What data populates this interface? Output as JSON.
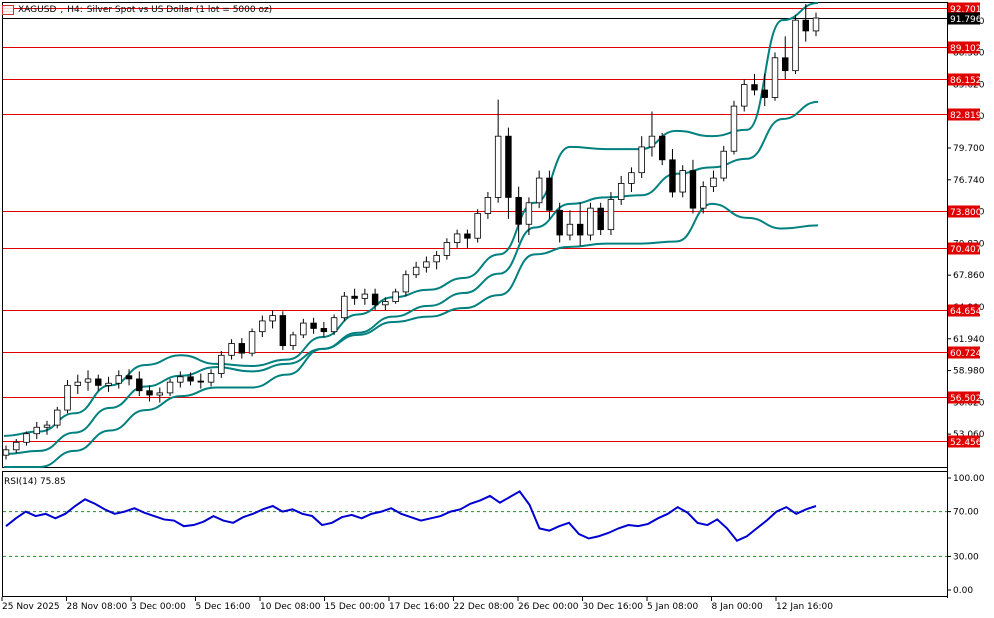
{
  "header": {
    "symbol": "XAGUSD",
    "timeframe": "H4:",
    "description": "Silver Spot vs US Dollar (1 lot = 5000 oz)"
  },
  "rsi_header": {
    "label": "RSI(14) 75.85"
  },
  "colors": {
    "candle": "#000000",
    "bollinger": "#00807f",
    "level_line": "#e00000",
    "level_tag": "#e00000",
    "rsi_line": "#0000d0",
    "current_price_tag": "#000000"
  },
  "chart_data": [
    {
      "type": "candlestick",
      "title": "XAGUSD, H4: Silver Spot vs US Dollar (1 lot = 5000 oz)",
      "ylim": [
        50.0,
        93.2
      ],
      "y_ticks": [
        "53.060",
        "56.020",
        "58.980",
        "61.940",
        "64.900",
        "67.860",
        "70.820",
        "73.780",
        "76.740",
        "79.700",
        "82.660",
        "85.620",
        "88.580",
        "91.540"
      ],
      "x_ticks": [
        "25 Nov 2025",
        "28 Nov 08:00",
        "3 Dec 00:00",
        "5 Dec 16:00",
        "10 Dec 08:00",
        "15 Dec 00:00",
        "17 Dec 16:00",
        "22 Dec 08:00",
        "26 Dec 00:00",
        "30 Dec 16:00",
        "5 Jan 08:00",
        "8 Jan 00:00",
        "12 Jan 16:00"
      ],
      "horizontal_levels": [
        "92.701",
        "89.102",
        "86.152",
        "82.819",
        "73.800",
        "70.407",
        "64.654",
        "60.724",
        "56.502",
        "52.456"
      ],
      "current_price": "91.796",
      "bollinger_bands": {
        "upper": [
          52.9,
          53.3,
          55.0,
          57.6,
          59.5,
          60.4,
          59.6,
          59.4,
          60.0,
          62.1,
          64.2,
          65.8,
          66.5,
          67.6,
          69.8,
          74.6,
          79.8,
          79.6,
          79.6,
          81.3,
          80.8,
          81.4,
          91.6,
          95.0
        ],
        "middle": [
          51.2,
          51.5,
          53.2,
          55.5,
          57.5,
          58.5,
          59.3,
          58.9,
          59.6,
          61.0,
          62.5,
          64.0,
          65.0,
          66.2,
          68.0,
          72.3,
          74.5,
          75.1,
          75.3,
          77.3,
          77.9,
          78.7,
          82.4,
          84.0
        ],
        "lower": [
          48.8,
          49.8,
          51.5,
          53.4,
          55.3,
          56.6,
          57.4,
          57.4,
          58.6,
          61.0,
          62.3,
          63.5,
          64.0,
          64.8,
          66.0,
          69.8,
          70.5,
          70.8,
          70.8,
          71.0,
          74.5,
          73.2,
          72.2,
          72.5
        ]
      },
      "candles": [
        {
          "o": 51.1,
          "h": 52.0,
          "l": 50.7,
          "c": 51.6
        },
        {
          "o": 51.6,
          "h": 52.6,
          "l": 51.3,
          "c": 52.3
        },
        {
          "o": 52.3,
          "h": 53.3,
          "l": 52.0,
          "c": 53.1
        },
        {
          "o": 53.1,
          "h": 54.2,
          "l": 52.6,
          "c": 53.7
        },
        {
          "o": 53.7,
          "h": 54.3,
          "l": 53.0,
          "c": 53.9
        },
        {
          "o": 53.9,
          "h": 55.6,
          "l": 53.6,
          "c": 55.3
        },
        {
          "o": 55.3,
          "h": 58.1,
          "l": 55.0,
          "c": 57.6
        },
        {
          "o": 57.6,
          "h": 58.6,
          "l": 56.8,
          "c": 57.9
        },
        {
          "o": 57.9,
          "h": 59.0,
          "l": 57.1,
          "c": 58.2
        },
        {
          "o": 58.2,
          "h": 58.6,
          "l": 57.1,
          "c": 57.6
        },
        {
          "o": 57.6,
          "h": 58.4,
          "l": 57.0,
          "c": 57.8
        },
        {
          "o": 57.8,
          "h": 59.0,
          "l": 57.3,
          "c": 58.5
        },
        {
          "o": 58.5,
          "h": 59.1,
          "l": 57.6,
          "c": 58.2
        },
        {
          "o": 58.2,
          "h": 58.9,
          "l": 56.6,
          "c": 57.1
        },
        {
          "o": 57.1,
          "h": 57.6,
          "l": 56.1,
          "c": 56.7
        },
        {
          "o": 56.7,
          "h": 57.4,
          "l": 56.0,
          "c": 56.9
        },
        {
          "o": 56.9,
          "h": 58.2,
          "l": 56.6,
          "c": 57.9
        },
        {
          "o": 57.9,
          "h": 58.9,
          "l": 57.4,
          "c": 58.4
        },
        {
          "o": 58.4,
          "h": 58.8,
          "l": 57.6,
          "c": 58.0
        },
        {
          "o": 58.0,
          "h": 58.7,
          "l": 57.3,
          "c": 57.9
        },
        {
          "o": 57.9,
          "h": 59.1,
          "l": 57.5,
          "c": 58.7
        },
        {
          "o": 58.7,
          "h": 60.8,
          "l": 58.3,
          "c": 60.4
        },
        {
          "o": 60.4,
          "h": 61.9,
          "l": 60.0,
          "c": 61.5
        },
        {
          "o": 61.5,
          "h": 62.0,
          "l": 60.1,
          "c": 60.6
        },
        {
          "o": 60.6,
          "h": 62.9,
          "l": 60.3,
          "c": 62.6
        },
        {
          "o": 62.6,
          "h": 64.1,
          "l": 62.1,
          "c": 63.6
        },
        {
          "o": 63.6,
          "h": 64.6,
          "l": 62.9,
          "c": 64.1
        },
        {
          "o": 64.1,
          "h": 64.5,
          "l": 60.9,
          "c": 61.3
        },
        {
          "o": 61.3,
          "h": 62.6,
          "l": 60.9,
          "c": 62.3
        },
        {
          "o": 62.3,
          "h": 63.8,
          "l": 62.0,
          "c": 63.4
        },
        {
          "o": 63.4,
          "h": 63.9,
          "l": 62.4,
          "c": 62.9
        },
        {
          "o": 62.9,
          "h": 63.5,
          "l": 62.1,
          "c": 62.6
        },
        {
          "o": 62.6,
          "h": 64.2,
          "l": 62.3,
          "c": 63.9
        },
        {
          "o": 63.9,
          "h": 66.3,
          "l": 63.6,
          "c": 65.9
        },
        {
          "o": 65.9,
          "h": 66.6,
          "l": 65.1,
          "c": 65.7
        },
        {
          "o": 65.7,
          "h": 66.6,
          "l": 65.1,
          "c": 66.1
        },
        {
          "o": 66.1,
          "h": 66.6,
          "l": 64.6,
          "c": 65.1
        },
        {
          "o": 65.1,
          "h": 65.8,
          "l": 64.6,
          "c": 65.4
        },
        {
          "o": 65.4,
          "h": 66.6,
          "l": 65.2,
          "c": 66.3
        },
        {
          "o": 66.3,
          "h": 68.3,
          "l": 65.9,
          "c": 67.9
        },
        {
          "o": 67.9,
          "h": 69.1,
          "l": 67.6,
          "c": 68.6
        },
        {
          "o": 68.6,
          "h": 69.6,
          "l": 68.1,
          "c": 69.1
        },
        {
          "o": 69.1,
          "h": 70.1,
          "l": 68.4,
          "c": 69.7
        },
        {
          "o": 69.7,
          "h": 71.3,
          "l": 69.3,
          "c": 70.9
        },
        {
          "o": 70.9,
          "h": 72.1,
          "l": 70.4,
          "c": 71.7
        },
        {
          "o": 71.7,
          "h": 72.1,
          "l": 70.4,
          "c": 71.3
        },
        {
          "o": 71.3,
          "h": 74.0,
          "l": 70.9,
          "c": 73.6
        },
        {
          "o": 73.6,
          "h": 75.6,
          "l": 73.1,
          "c": 75.1
        },
        {
          "o": 75.1,
          "h": 84.2,
          "l": 74.6,
          "c": 80.8
        },
        {
          "o": 80.8,
          "h": 81.6,
          "l": 73.1,
          "c": 75.1
        },
        {
          "o": 75.1,
          "h": 76.1,
          "l": 70.9,
          "c": 72.6
        },
        {
          "o": 72.6,
          "h": 75.1,
          "l": 71.6,
          "c": 74.6
        },
        {
          "o": 74.6,
          "h": 77.6,
          "l": 74.1,
          "c": 76.9
        },
        {
          "o": 76.9,
          "h": 77.6,
          "l": 73.1,
          "c": 73.9
        },
        {
          "o": 73.9,
          "h": 74.6,
          "l": 70.9,
          "c": 71.6
        },
        {
          "o": 71.6,
          "h": 73.9,
          "l": 71.1,
          "c": 72.6
        },
        {
          "o": 72.6,
          "h": 74.6,
          "l": 70.6,
          "c": 71.6
        },
        {
          "o": 71.6,
          "h": 74.6,
          "l": 71.1,
          "c": 74.1
        },
        {
          "o": 74.1,
          "h": 74.6,
          "l": 71.6,
          "c": 72.1
        },
        {
          "o": 72.1,
          "h": 75.6,
          "l": 71.6,
          "c": 74.9
        },
        {
          "o": 74.9,
          "h": 77.1,
          "l": 74.4,
          "c": 76.4
        },
        {
          "o": 76.4,
          "h": 77.9,
          "l": 75.6,
          "c": 77.4
        },
        {
          "o": 77.4,
          "h": 80.8,
          "l": 76.9,
          "c": 79.8
        },
        {
          "o": 79.8,
          "h": 83.1,
          "l": 78.9,
          "c": 80.8
        },
        {
          "o": 80.8,
          "h": 81.1,
          "l": 78.1,
          "c": 78.6
        },
        {
          "o": 78.6,
          "h": 79.6,
          "l": 75.1,
          "c": 75.6
        },
        {
          "o": 75.6,
          "h": 78.1,
          "l": 75.1,
          "c": 77.6
        },
        {
          "o": 77.6,
          "h": 78.6,
          "l": 73.6,
          "c": 74.1
        },
        {
          "o": 74.1,
          "h": 76.6,
          "l": 73.6,
          "c": 76.1
        },
        {
          "o": 76.1,
          "h": 77.6,
          "l": 75.6,
          "c": 76.9
        },
        {
          "o": 76.9,
          "h": 79.9,
          "l": 76.6,
          "c": 79.4
        },
        {
          "o": 79.4,
          "h": 84.1,
          "l": 79.1,
          "c": 83.6
        },
        {
          "o": 83.6,
          "h": 86.1,
          "l": 83.1,
          "c": 85.6
        },
        {
          "o": 85.6,
          "h": 86.6,
          "l": 84.6,
          "c": 85.1
        },
        {
          "o": 85.1,
          "h": 86.6,
          "l": 83.6,
          "c": 84.4
        },
        {
          "o": 84.4,
          "h": 88.6,
          "l": 84.1,
          "c": 88.1
        },
        {
          "o": 88.1,
          "h": 90.1,
          "l": 86.1,
          "c": 86.9
        },
        {
          "o": 86.9,
          "h": 92.1,
          "l": 86.6,
          "c": 91.6
        },
        {
          "o": 91.6,
          "h": 93.1,
          "l": 89.6,
          "c": 90.6
        },
        {
          "o": 90.6,
          "h": 92.3,
          "l": 90.1,
          "c": 91.8
        }
      ]
    },
    {
      "type": "line",
      "title": "RSI(14) 75.85",
      "ylim": [
        0,
        100
      ],
      "y_ticks": [
        "100.00",
        "70.00",
        "30.00",
        "0.00"
      ],
      "levels": [
        70,
        30
      ],
      "series": [
        {
          "values": [
            57,
            64,
            70,
            66,
            68,
            64,
            68,
            75,
            81,
            77,
            72,
            68,
            70,
            73,
            69,
            66,
            63,
            62,
            57,
            58,
            61,
            66,
            62,
            60,
            65,
            68,
            72,
            75,
            70,
            72,
            68,
            66,
            58,
            60,
            65,
            67,
            64,
            68,
            70,
            73,
            68,
            65,
            62,
            64,
            66,
            70,
            72,
            77,
            80,
            84,
            78,
            83,
            88,
            76,
            55,
            53,
            57,
            60,
            50,
            46,
            48,
            51,
            55,
            58,
            57,
            59,
            64,
            68,
            74,
            69,
            60,
            58,
            63,
            55,
            44,
            48,
            55,
            62,
            70,
            74,
            68,
            72,
            75
          ]
        }
      ]
    }
  ]
}
